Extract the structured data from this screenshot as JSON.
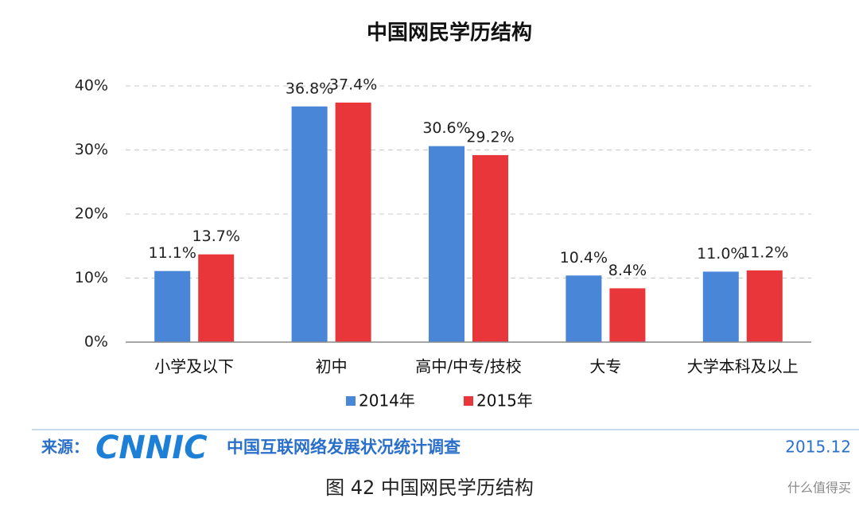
{
  "chart_data": {
    "type": "bar",
    "title": "中国网民学历结构",
    "categories": [
      "小学及以下",
      "初中",
      "高中/中专/技校",
      "大专",
      "大学本科及以上"
    ],
    "series": [
      {
        "name": "2014年",
        "color": "#4a86d8",
        "values": [
          11.1,
          36.8,
          30.6,
          10.4,
          11.0
        ],
        "value_labels": [
          "11.1%",
          "36.8%",
          "30.6%",
          "10.4%",
          "11.0%"
        ]
      },
      {
        "name": "2015年",
        "color": "#e8363a",
        "values": [
          13.7,
          37.4,
          29.2,
          8.4,
          11.2
        ],
        "value_labels": [
          "13.7%",
          "37.4%",
          "29.2%",
          "8.4%",
          "11.2%"
        ]
      }
    ],
    "ylim": [
      0,
      40
    ],
    "yticks": [
      {
        "value": 0,
        "label": "0%"
      },
      {
        "value": 10,
        "label": "10%"
      },
      {
        "value": 20,
        "label": "20%"
      },
      {
        "value": 30,
        "label": "30%"
      },
      {
        "value": 40,
        "label": "40%"
      }
    ],
    "grid": true,
    "legend": "bottom"
  },
  "footer": {
    "source_label": "来源：",
    "logo": "CNNIC",
    "survey": "中国互联网络发展状况统计调查",
    "date": "2015.12"
  },
  "caption": "图 42 中国网民学历结构",
  "watermark": "什么值得买"
}
